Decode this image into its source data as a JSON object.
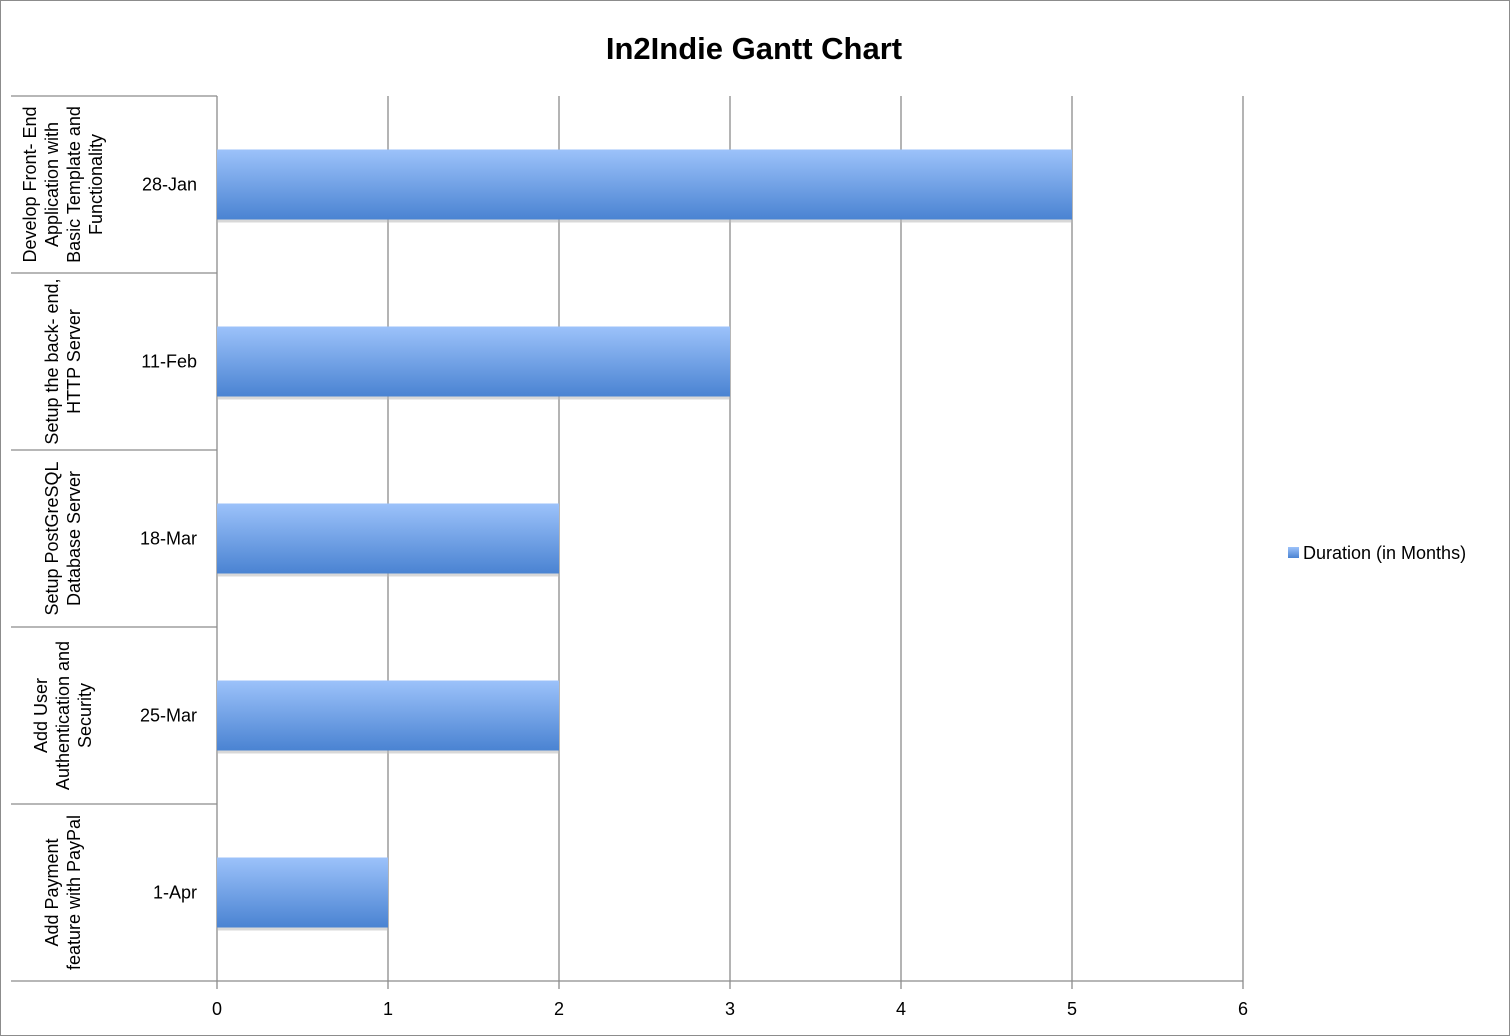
{
  "chart_data": {
    "type": "bar",
    "orientation": "horizontal",
    "title": "In2Indie Gantt Chart",
    "categories": [
      {
        "task_lines": [
          "Develop Front- End",
          "Application with",
          "Basic Template and",
          "Functionality"
        ],
        "date": "28-Jan"
      },
      {
        "task_lines": [
          "Setup the back- end,",
          "HTTP Server"
        ],
        "date": "11-Feb"
      },
      {
        "task_lines": [
          "Setup PostGreSQL",
          "Database Server"
        ],
        "date": "18-Mar"
      },
      {
        "task_lines": [
          "Add User",
          "Authentication and",
          "Security"
        ],
        "date": "25-Mar"
      },
      {
        "task_lines": [
          "Add Payment",
          "feature with PayPal"
        ],
        "date": "1-Apr"
      }
    ],
    "series": [
      {
        "name": "Duration (in Months)",
        "values": [
          5,
          3,
          2,
          2,
          1
        ],
        "color": "#5b8fd8"
      }
    ],
    "xlim": [
      0,
      6
    ],
    "xticks": [
      "0",
      "1",
      "2",
      "3",
      "4",
      "5",
      "6"
    ],
    "grid": true,
    "legend_position": "right"
  }
}
